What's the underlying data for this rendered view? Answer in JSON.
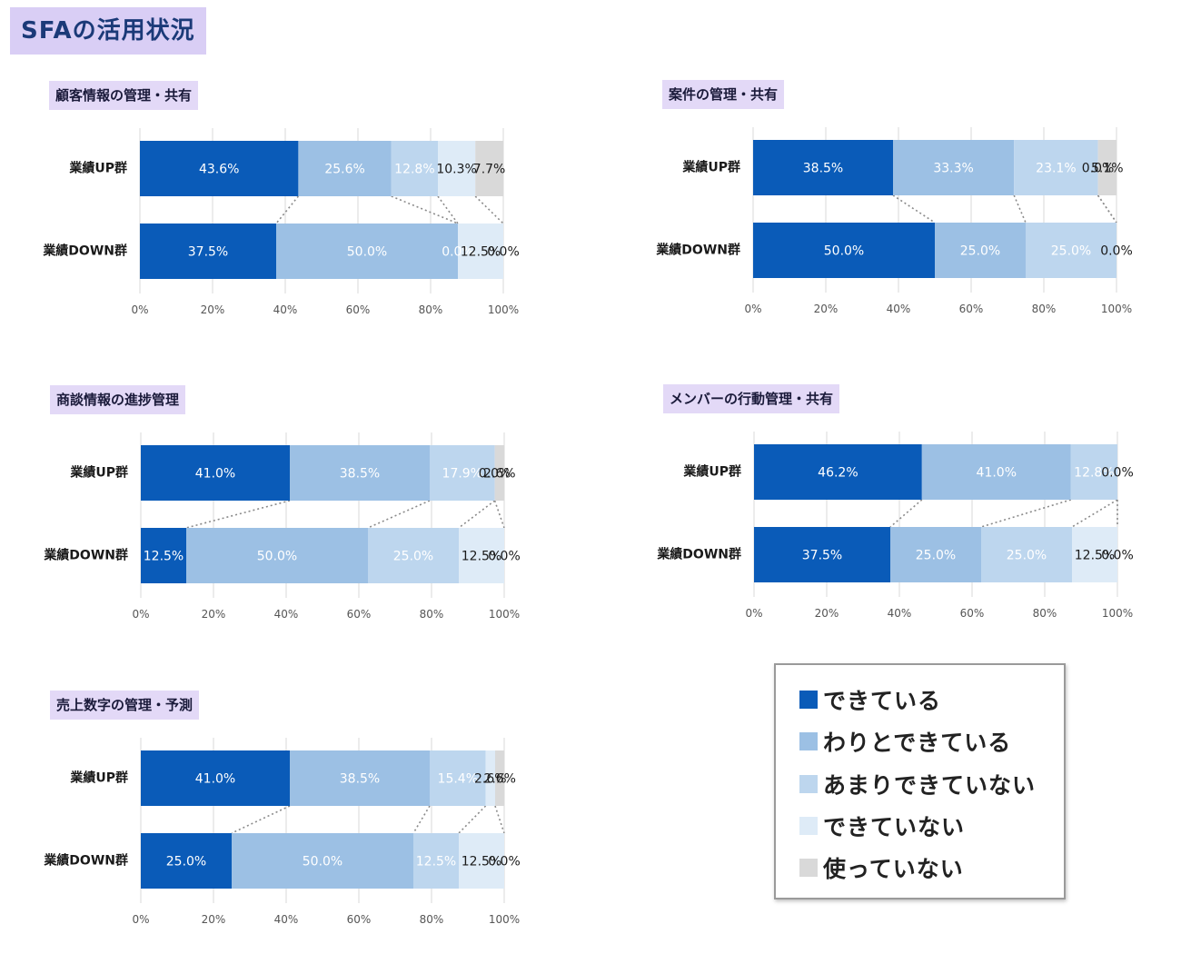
{
  "page_title": "SFAの活用状況",
  "categories": [
    "できている",
    "わりとできている",
    "あまりできていない",
    "できていない",
    "使っていない"
  ],
  "colors": [
    "#0a5bb8",
    "#9cc0e4",
    "#bdd6ee",
    "#deebf7",
    "#d9d9d9"
  ],
  "label_colors": [
    "#ffffff",
    "#ffffff",
    "#ffffff",
    "#1a1a1a",
    "#1a1a1a"
  ],
  "x_ticks": [
    "0%",
    "20%",
    "40%",
    "60%",
    "80%",
    "100%"
  ],
  "chart_data": [
    {
      "type": "bar",
      "stacked": true,
      "orientation": "horizontal",
      "title": "顧客情報の管理・共有",
      "xlim": [
        0,
        100
      ],
      "rows": [
        {
          "name": "業績UP群",
          "values": [
            43.6,
            25.6,
            12.8,
            10.3,
            7.7
          ],
          "labels": [
            "43.6%",
            "25.6%",
            "12.8%",
            "10.3%",
            "7.7%"
          ]
        },
        {
          "name": "業績DOWN群",
          "values": [
            37.5,
            50.0,
            0.0,
            12.5,
            0.0
          ],
          "labels": [
            "37.5%",
            "50.0%",
            "0.0%",
            "12.5%",
            "0.0%"
          ]
        }
      ]
    },
    {
      "type": "bar",
      "stacked": true,
      "orientation": "horizontal",
      "title": "案件の管理・共有",
      "xlim": [
        0,
        100
      ],
      "rows": [
        {
          "name": "業績UP群",
          "values": [
            38.5,
            33.3,
            23.1,
            0.0,
            5.1
          ],
          "labels": [
            "38.5%",
            "33.3%",
            "23.1%",
            "0.0%",
            "5.1%"
          ]
        },
        {
          "name": "業績DOWN群",
          "values": [
            50.0,
            25.0,
            25.0,
            0.0,
            0.0
          ],
          "labels": [
            "50.0%",
            "25.0%",
            "25.0%",
            "0.0%",
            ""
          ]
        }
      ]
    },
    {
      "type": "bar",
      "stacked": true,
      "orientation": "horizontal",
      "title": "商談情報の進捗管理",
      "xlim": [
        0,
        100
      ],
      "rows": [
        {
          "name": "業績UP群",
          "values": [
            41.0,
            38.5,
            17.9,
            0.0,
            2.6
          ],
          "labels": [
            "41.0%",
            "38.5%",
            "17.9%",
            "0.0%",
            "2.6%"
          ]
        },
        {
          "name": "業績DOWN群",
          "values": [
            12.5,
            50.0,
            25.0,
            12.5,
            0.0
          ],
          "labels": [
            "12.5%",
            "50.0%",
            "25.0%",
            "12.5%",
            "0.0%"
          ]
        }
      ]
    },
    {
      "type": "bar",
      "stacked": true,
      "orientation": "horizontal",
      "title": "メンバーの行動管理・共有",
      "xlim": [
        0,
        100
      ],
      "rows": [
        {
          "name": "業績UP群",
          "values": [
            46.2,
            41.0,
            12.8,
            0.0,
            0.0
          ],
          "labels": [
            "46.2%",
            "41.0%",
            "12.8%",
            "0.0%",
            ""
          ]
        },
        {
          "name": "業績DOWN群",
          "values": [
            37.5,
            25.0,
            25.0,
            12.5,
            0.0
          ],
          "labels": [
            "37.5%",
            "25.0%",
            "25.0%",
            "12.5%",
            "0.0%"
          ]
        }
      ]
    },
    {
      "type": "bar",
      "stacked": true,
      "orientation": "horizontal",
      "title": "売上数字の管理・予測",
      "xlim": [
        0,
        100
      ],
      "rows": [
        {
          "name": "業績UP群",
          "values": [
            41.0,
            38.5,
            15.4,
            2.6,
            2.6
          ],
          "labels": [
            "41.0%",
            "38.5%",
            "15.4%",
            "2.6%",
            "2.6%"
          ]
        },
        {
          "name": "業績DOWN群",
          "values": [
            25.0,
            50.0,
            12.5,
            12.5,
            0.0
          ],
          "labels": [
            "25.0%",
            "50.0%",
            "12.5%",
            "12.5%",
            "0.0%"
          ]
        }
      ]
    }
  ]
}
